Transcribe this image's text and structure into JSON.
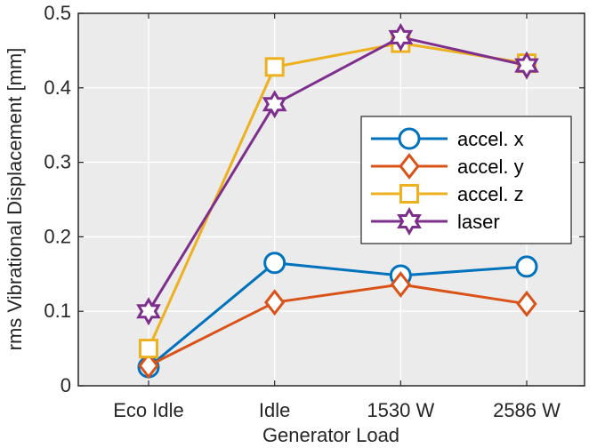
{
  "chart_data": {
    "type": "line",
    "xlabel": "Generator Load",
    "ylabel": "rms Vibrational Displacement [mm]",
    "categories": [
      "Eco Idle",
      "Idle",
      "1530 W",
      "2586 W"
    ],
    "ylim": [
      0,
      0.5
    ],
    "yticks": [
      "0",
      "0.1",
      "0.2",
      "0.3",
      "0.4",
      "0.5"
    ],
    "grid": true,
    "legend_position": "right",
    "series": [
      {
        "name": "accel. x",
        "marker": "circle",
        "color": "#0072BD",
        "values": [
          0.025,
          0.165,
          0.148,
          0.16
        ]
      },
      {
        "name": "accel. y",
        "marker": "diamond",
        "color": "#D95319",
        "values": [
          0.027,
          0.112,
          0.136,
          0.11
        ]
      },
      {
        "name": "accel. z",
        "marker": "square",
        "color": "#EDB120",
        "values": [
          0.05,
          0.428,
          0.46,
          0.433
        ]
      },
      {
        "name": "laser",
        "marker": "hexagram",
        "color": "#7E2F8E",
        "values": [
          0.1,
          0.378,
          0.468,
          0.43
        ]
      }
    ]
  }
}
